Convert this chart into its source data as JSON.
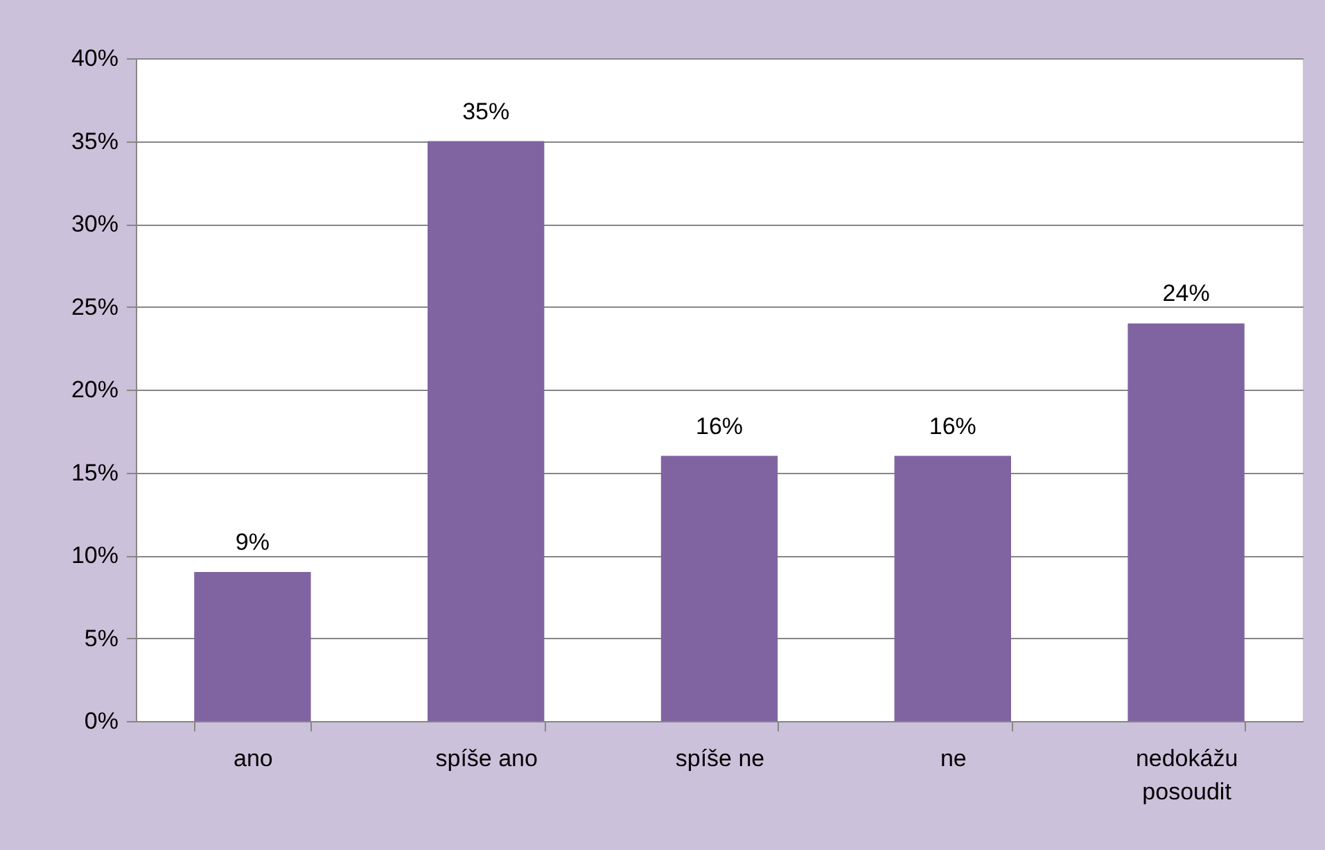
{
  "chart_data": {
    "type": "bar",
    "categories": [
      "ano",
      "spíše ano",
      "spíše ne",
      "ne",
      "nedokážu posoudit"
    ],
    "values": [
      9,
      35,
      16,
      16,
      24
    ],
    "color": "#8064a2",
    "value_labels": [
      "9%",
      "35%",
      "16%",
      "16%",
      "24%"
    ],
    "ylim": [
      0,
      40
    ],
    "yticks": [
      {
        "value": 0,
        "label": "0%"
      },
      {
        "value": 5,
        "label": "5%"
      },
      {
        "value": 10,
        "label": "10%"
      },
      {
        "value": 15,
        "label": "15%"
      },
      {
        "value": 20,
        "label": "20%"
      },
      {
        "value": 25,
        "label": "25%"
      },
      {
        "value": 30,
        "label": "30%"
      },
      {
        "value": 35,
        "label": "35%"
      },
      {
        "value": 40,
        "label": "40%"
      }
    ],
    "grid": "y"
  }
}
